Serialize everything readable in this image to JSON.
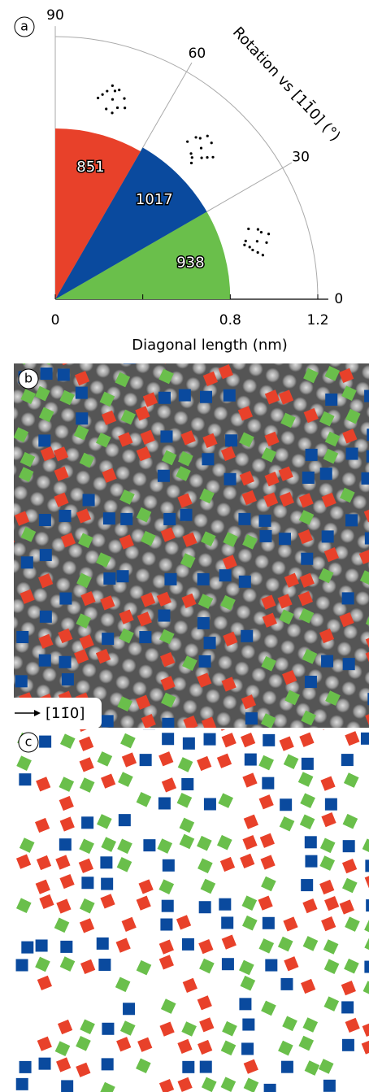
{
  "chart_data": {
    "type": "polar",
    "title": "Rotation vs [11̄0] (°)",
    "xlabel": "Diagonal length (nm)",
    "xlim": [
      0,
      1.2
    ],
    "xticks": [
      0,
      0.8,
      1.2
    ],
    "minor_xticks": [
      0.4
    ],
    "thetalim": [
      0,
      90
    ],
    "thetaticks": [
      0,
      30,
      60,
      90
    ],
    "sectors": {
      "theta_start": [
        0,
        30,
        60
      ],
      "theta_end": [
        30,
        60,
        90
      ],
      "radius": [
        0.8,
        0.8,
        0.78
      ],
      "values": [
        938,
        1017,
        851
      ],
      "colors": [
        "#6abf4b",
        "#0a4a9e",
        "#e8412a"
      ]
    },
    "points": {
      "color": "#000000",
      "r": [
        0.95,
        0.92,
        0.98,
        0.9,
        1.0,
        0.94,
        0.97,
        0.89,
        0.96,
        1.01,
        0.93,
        0.99,
        0.96,
        0.93,
        0.99,
        0.91,
        1.01,
        0.95,
        0.98,
        0.9,
        0.97,
        1.02,
        0.94,
        0.88,
        0.96,
        0.93,
        0.99,
        0.91,
        1.0,
        0.95,
        0.98,
        0.9,
        0.97,
        1.02,
        0.94,
        0.92
      ],
      "theta": [
        74,
        72,
        76,
        75,
        73,
        78,
        71,
        73,
        77,
        75,
        70,
        74,
        46,
        44,
        48,
        47,
        45,
        43,
        49,
        46,
        42,
        47,
        50,
        45,
        16,
        14,
        18,
        17,
        15,
        13,
        19,
        16,
        12,
        17,
        20,
        15
      ]
    }
  },
  "panel_labels": [
    "a",
    "b",
    "c"
  ],
  "direction_label": "[11̄0]"
}
